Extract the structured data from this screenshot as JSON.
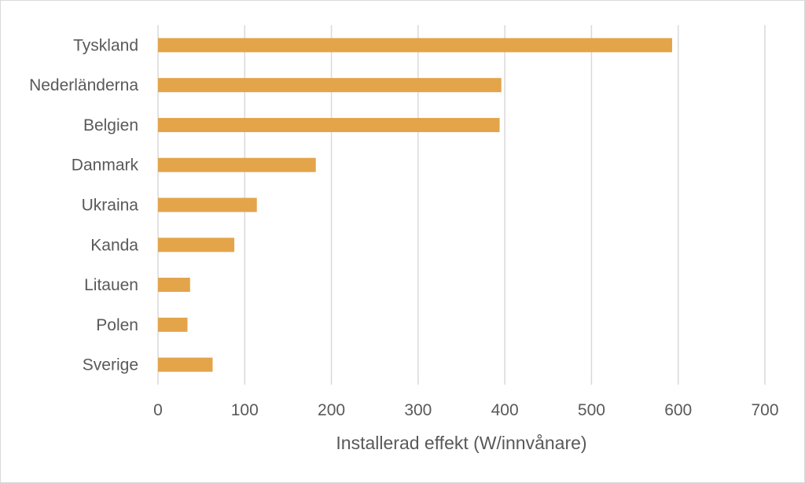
{
  "chart_data": {
    "type": "bar",
    "orientation": "horizontal",
    "title": "",
    "xlabel": "Installerad effekt (W/innvånare)",
    "ylabel": "",
    "categories": [
      "Tyskland",
      "Nederländerna",
      "Belgien",
      "Danmark",
      "Ukraina",
      "Kanda",
      "Litauen",
      "Polen",
      "Sverige"
    ],
    "values": [
      593,
      396,
      394,
      182,
      114,
      88,
      37,
      34,
      63
    ],
    "xlim": [
      0,
      700
    ],
    "xticks": [
      0,
      100,
      200,
      300,
      400,
      500,
      600,
      700
    ],
    "grid": "vertical",
    "legend": "none",
    "bar_color": "#e3a44a",
    "grid_color": "#d9d9d9",
    "text_color": "#595959"
  }
}
